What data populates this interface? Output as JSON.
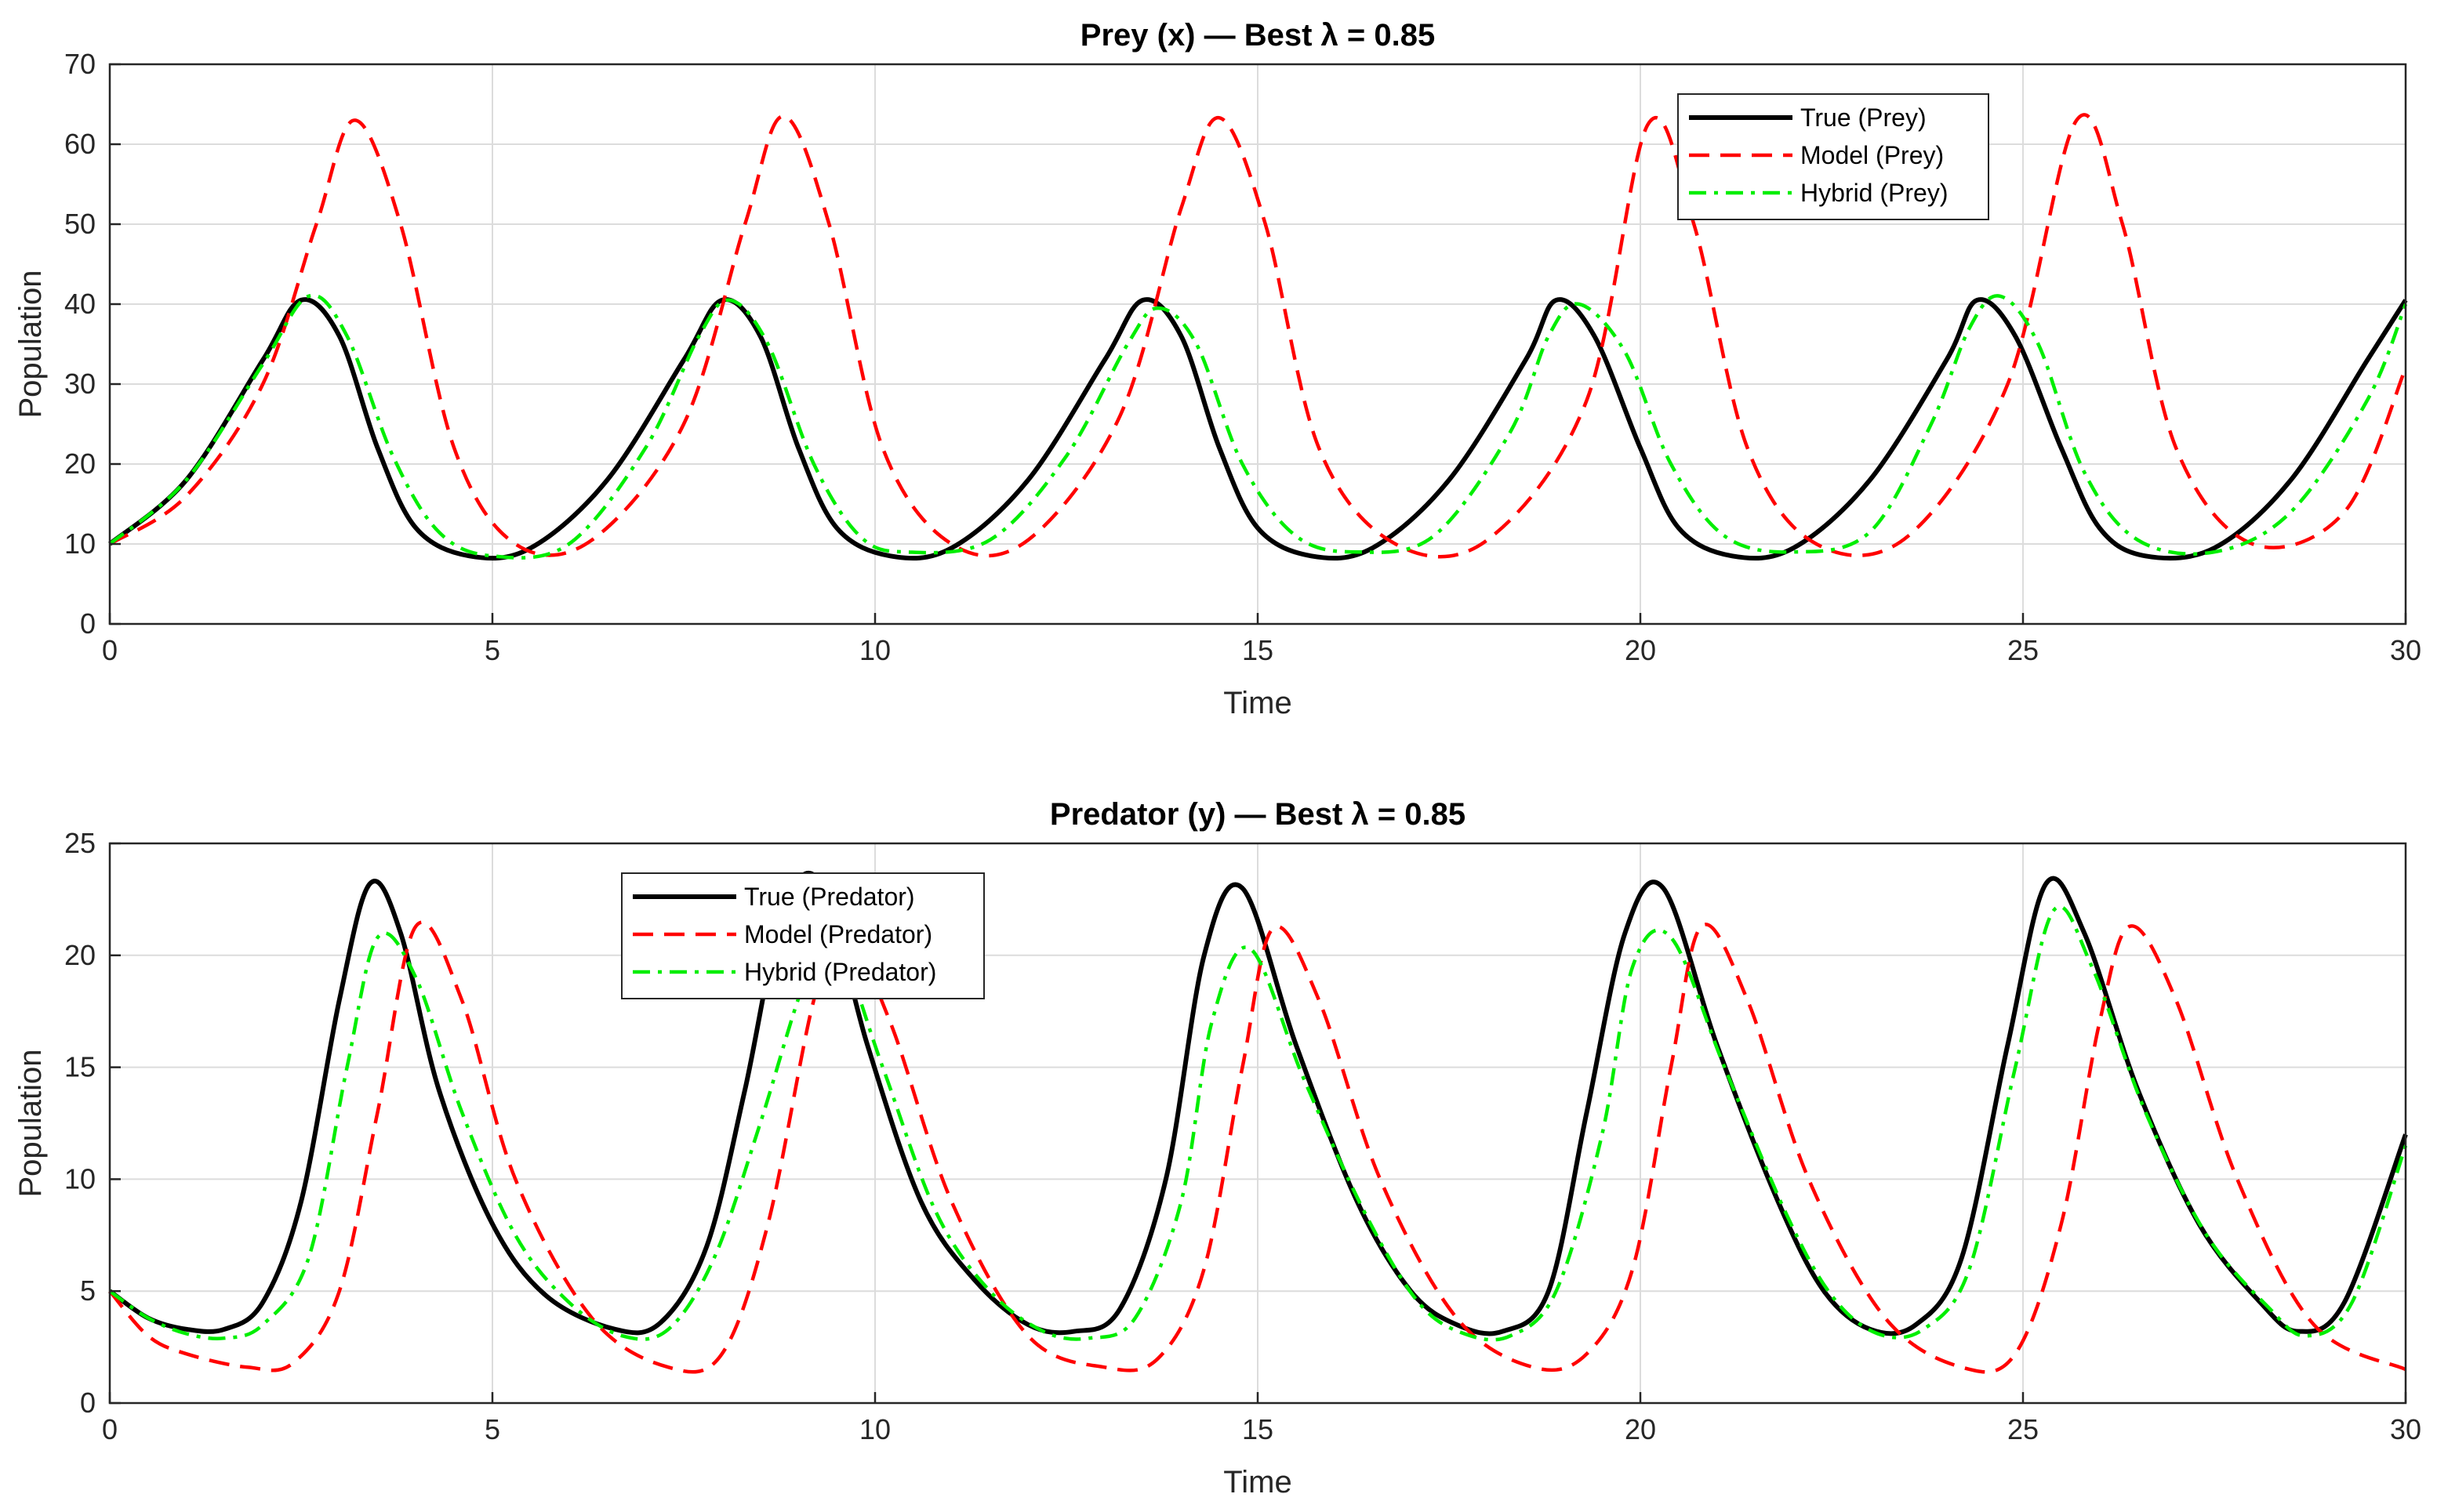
{
  "chart_data": [
    {
      "type": "line",
      "title": "Prey (x) — Best λ = 0.85",
      "xlabel": "Time",
      "ylabel": "Population",
      "xlim": [
        0,
        30
      ],
      "ylim": [
        0,
        70
      ],
      "xticks": [
        "0",
        "5",
        "10",
        "15",
        "20",
        "25",
        "30"
      ],
      "yticks": [
        "0",
        "10",
        "20",
        "30",
        "40",
        "50",
        "60",
        "70"
      ],
      "grid": true,
      "legend_position": "top-right",
      "series": [
        {
          "name": "True (Prey)",
          "color": "#000000",
          "style": "solid",
          "x": [
            0,
            1,
            2,
            2.5,
            3,
            3.5,
            4,
            4.7,
            5.5,
            6.5,
            7.5,
            8,
            8.5,
            9,
            9.5,
            10.2,
            11,
            12,
            13,
            13.5,
            14,
            14.5,
            15,
            15.7,
            16.5,
            17.5,
            18.5,
            18.9,
            19.4,
            20,
            20.5,
            21.2,
            22,
            23,
            24,
            24.4,
            24.9,
            25.5,
            26,
            26.6,
            27.5,
            28.5,
            29.5,
            30
          ],
          "y": [
            10,
            18,
            33,
            40.5,
            36,
            22,
            12,
            8.5,
            9.5,
            18,
            33,
            40.5,
            36,
            22,
            12,
            8.5,
            9.5,
            18,
            33,
            40.5,
            36,
            22,
            12,
            8.5,
            9.5,
            18,
            33,
            40.5,
            36,
            22,
            12,
            8.5,
            9.5,
            18,
            33,
            40.5,
            36,
            22,
            12,
            8.5,
            9.5,
            18,
            33,
            40.5
          ]
        },
        {
          "name": "Model (Prey)",
          "color": "#ff0000",
          "style": "dashed",
          "x": [
            0,
            1,
            2,
            2.7,
            3.2,
            3.8,
            4.5,
            5.3,
            6.3,
            7.5,
            8.3,
            8.8,
            9.4,
            10.1,
            11,
            12,
            13.2,
            14,
            14.5,
            15.1,
            15.8,
            16.8,
            18,
            19.3,
            20.1,
            20.7,
            21.4,
            22.3,
            23.5,
            24.8,
            25.7,
            26.3,
            27,
            28,
            29.2,
            30
          ],
          "y": [
            10,
            16,
            30,
            50,
            63,
            50,
            22,
            10,
            10.5,
            25,
            50,
            63.5,
            50,
            22,
            10,
            10.5,
            26,
            52,
            63.3,
            50,
            22,
            10,
            10.5,
            28,
            62.5,
            50,
            22,
            10,
            11,
            30,
            63,
            50,
            22,
            10,
            14,
            32
          ]
        },
        {
          "name": "Hybrid (Prey)",
          "color": "#00ee00",
          "style": "dashdot",
          "x": [
            0,
            1,
            2,
            2.6,
            3.1,
            3.7,
            4.3,
            5,
            6,
            7,
            7.7,
            8.1,
            8.6,
            9.2,
            9.8,
            10.4,
            11.5,
            12.5,
            13.3,
            13.7,
            14.2,
            14.8,
            15.5,
            16.3,
            17.3,
            18.3,
            18.8,
            19.2,
            19.8,
            20.4,
            21.1,
            22,
            23,
            23.8,
            24.3,
            24.7,
            25.2,
            25.8,
            26.5,
            27.5,
            28.5,
            29.5,
            30
          ],
          "y": [
            10,
            18,
            32.5,
            41,
            36,
            21,
            11.5,
            8.5,
            10,
            22,
            36,
            40.5,
            35,
            20,
            11,
            9,
            10.5,
            21,
            35,
            39.5,
            35,
            20,
            11,
            9,
            11,
            24,
            36,
            40,
            34,
            20,
            11,
            9,
            11.5,
            25,
            37,
            41,
            35,
            19,
            10.5,
            9,
            14,
            28,
            40
          ]
        }
      ]
    },
    {
      "type": "line",
      "title": "Predator (y) — Best λ = 0.85",
      "xlabel": "Time",
      "ylabel": "Population",
      "xlim": [
        0,
        30
      ],
      "ylim": [
        0,
        25
      ],
      "xticks": [
        "0",
        "5",
        "10",
        "15",
        "20",
        "25",
        "30"
      ],
      "yticks": [
        "0",
        "5",
        "10",
        "15",
        "20",
        "25"
      ],
      "grid": true,
      "legend_position": "top-left",
      "series": [
        {
          "name": "True (Predator)",
          "color": "#000000",
          "style": "solid",
          "x": [
            0,
            0.5,
            1,
            1.5,
            2,
            2.5,
            3,
            3.4,
            3.8,
            4.3,
            5,
            5.7,
            6.6,
            7.2,
            7.8,
            8.3,
            8.8,
            9.3,
            9.9,
            10.6,
            11.3,
            12,
            12.6,
            13.2,
            13.8,
            14.3,
            14.8,
            15.5,
            16.3,
            17,
            17.6,
            18.2,
            18.8,
            19.3,
            19.8,
            20.3,
            21,
            21.8,
            22.4,
            23,
            23.6,
            24.2,
            24.8,
            25.3,
            25.8,
            26.5,
            27.3,
            28.1,
            28.6,
            29.2,
            30
          ],
          "y": [
            5,
            3.8,
            3.3,
            3.3,
            4.5,
            9,
            18,
            23.2,
            21,
            14,
            8,
            4.8,
            3.3,
            3.6,
            7,
            14,
            22,
            23.2,
            16,
            9,
            5.5,
            3.5,
            3.2,
            4.2,
            10,
            20,
            23,
            16,
            9,
            5,
            3.5,
            3.2,
            5,
            13,
            21,
            23,
            16,
            9,
            5,
            3.3,
            3.5,
            6.5,
            16,
            23.2,
            21,
            14,
            8,
            4.5,
            3.2,
            4.5,
            12
          ]
        },
        {
          "name": "Model (Predator)",
          "color": "#ff0000",
          "style": "dashed",
          "x": [
            0,
            0.5,
            1,
            1.8,
            2.4,
            3,
            3.5,
            4,
            4.6,
            5.3,
            6.3,
            7.3,
            8,
            8.6,
            9.2,
            9.6,
            10.2,
            11,
            12,
            13,
            13.7,
            14.3,
            14.8,
            15.2,
            15.8,
            16.6,
            17.6,
            18.6,
            19.3,
            19.9,
            20.4,
            20.8,
            21.4,
            22.2,
            23.2,
            24.2,
            24.9,
            25.5,
            26,
            26.4,
            27,
            27.8,
            28.8,
            30
          ],
          "y": [
            5,
            3,
            2.2,
            1.6,
            1.8,
            5,
            13,
            21.3,
            18,
            10,
            3.8,
            1.6,
            2.2,
            8,
            18,
            21,
            17,
            9,
            3,
            1.6,
            2,
            6,
            15,
            21.2,
            18,
            10,
            3.8,
            1.6,
            2.2,
            6,
            15,
            21.3,
            18,
            10,
            3.8,
            1.6,
            2.2,
            8,
            17,
            21.3,
            18,
            10,
            3.5,
            1.5
          ]
        },
        {
          "name": "Hybrid (Predator)",
          "color": "#00ee00",
          "style": "dashdot",
          "x": [
            0,
            0.5,
            1,
            1.5,
            2,
            2.6,
            3.1,
            3.5,
            4,
            4.6,
            5.3,
            6,
            6.7,
            7.3,
            7.9,
            8.5,
            9.1,
            9.5,
            10.1,
            10.8,
            11.5,
            12.2,
            12.8,
            13.4,
            14,
            14.4,
            14.9,
            15.6,
            16.4,
            17.1,
            17.7,
            18.3,
            18.9,
            19.5,
            19.9,
            20.4,
            21.1,
            21.9,
            22.5,
            23.1,
            23.7,
            24.3,
            24.9,
            25.4,
            25.9,
            26.6,
            27.4,
            28.2,
            28.7,
            29.3,
            30
          ],
          "y": [
            5,
            3.8,
            3.1,
            2.9,
            3.5,
            6.5,
            15,
            20.8,
            19,
            13,
            7.5,
            4.5,
            3,
            3.3,
            6.5,
            12.5,
            19,
            20.5,
            15,
            8.5,
            5,
            3.2,
            2.9,
            3.8,
            9,
            17,
            20.3,
            14.5,
            8.5,
            4.5,
            3.1,
            3,
            5,
            12,
            19.5,
            20.8,
            15,
            8.5,
            4.8,
            3.1,
            3.3,
            6,
            15,
            22,
            19.5,
            13,
            7.5,
            4.3,
            3,
            4.5,
            11.5
          ]
        }
      ]
    }
  ]
}
